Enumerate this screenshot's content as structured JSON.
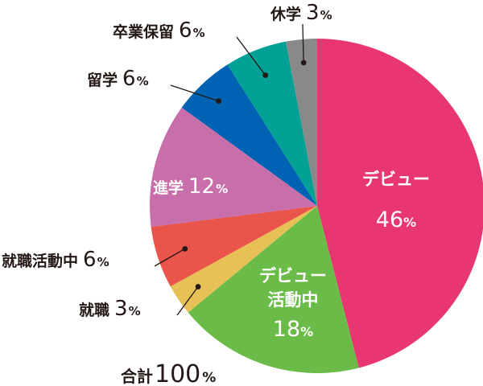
{
  "chart_data": {
    "type": "pie",
    "title": "",
    "total_label": "合計",
    "total_value": "100",
    "total_unit": "%",
    "slices": [
      {
        "label": "デビュー",
        "value": 46,
        "color": "#e83672"
      },
      {
        "label": "デビュー活動中",
        "label_lines": [
          "デビュー",
          "活動中"
        ],
        "value": 18,
        "color": "#6abb47"
      },
      {
        "label": "就職",
        "value": 3,
        "color": "#e7c155"
      },
      {
        "label": "就職活動中",
        "value": 6,
        "color": "#e9544b"
      },
      {
        "label": "進学",
        "value": 12,
        "color": "#c86fab"
      },
      {
        "label": "留学",
        "value": 6,
        "color": "#0062b3"
      },
      {
        "label": "卒業保留",
        "value": 6,
        "color": "#02a195"
      },
      {
        "label": "休学",
        "value": 3,
        "color": "#898989"
      }
    ],
    "unit": "%"
  }
}
